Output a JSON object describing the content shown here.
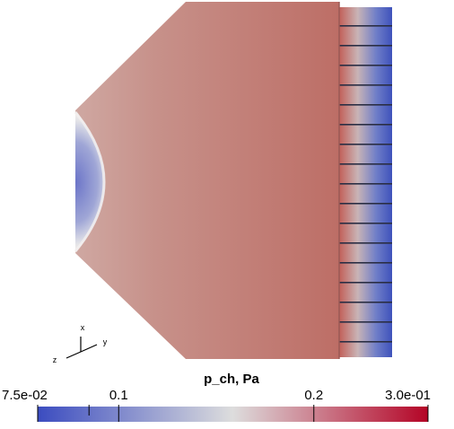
{
  "colorbar": {
    "title": "p_ch,  Pa",
    "range": [
      0.075,
      0.3
    ],
    "log": true,
    "ticks": [
      {
        "value": 0.075,
        "label": "7.5e-02"
      },
      0.1,
      0.2,
      {
        "value": 0.3,
        "label": "3.0e-01"
      }
    ],
    "minor_ticks": [
      0.09
    ],
    "colormap": [
      "#3b4cc0",
      "#dddddd",
      "#b40426"
    ]
  },
  "axes_triad": {
    "x": "x",
    "y": "y",
    "z": "z"
  }
}
